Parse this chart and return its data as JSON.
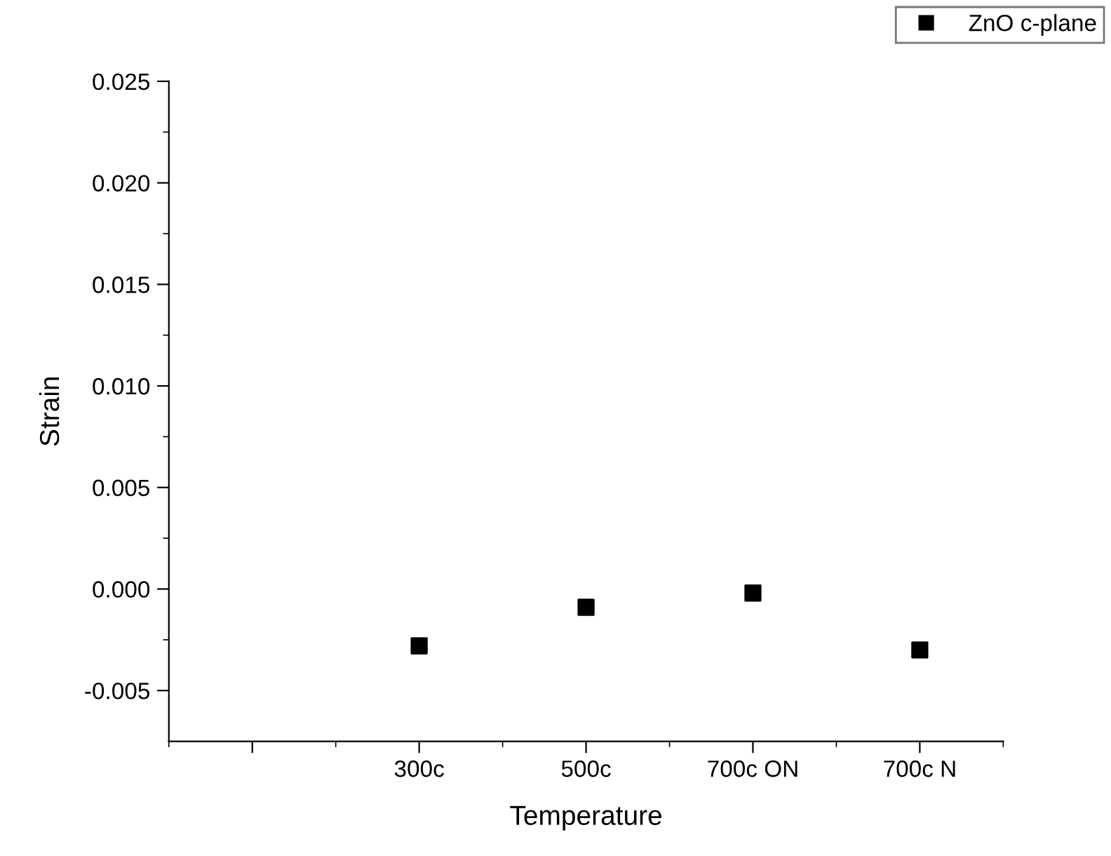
{
  "chart_data": {
    "type": "scatter",
    "xlabel": "Temperature",
    "ylabel": "Strain",
    "categories": [
      null,
      "300c",
      "500c",
      "700c ON",
      "700c N"
    ],
    "series": [
      {
        "name": "ZnO c-plane",
        "color": "#000000",
        "values": [
          null,
          -0.0028,
          -0.0009,
          -0.0002,
          -0.003
        ]
      }
    ],
    "ylim": [
      -0.0075,
      0.025
    ],
    "yticks": [
      {
        "value": -0.005,
        "label": "-0.005"
      },
      {
        "value": 0,
        "label": "0.000"
      },
      {
        "value": 0.005,
        "label": "0.005"
      },
      {
        "value": 0.01,
        "label": "0.010"
      },
      {
        "value": 0.015,
        "label": "0.015"
      },
      {
        "value": 0.02,
        "label": "0.020"
      },
      {
        "value": 0.025,
        "label": "0.025"
      }
    ],
    "marker": "square",
    "legend": "top right",
    "grid": false
  }
}
